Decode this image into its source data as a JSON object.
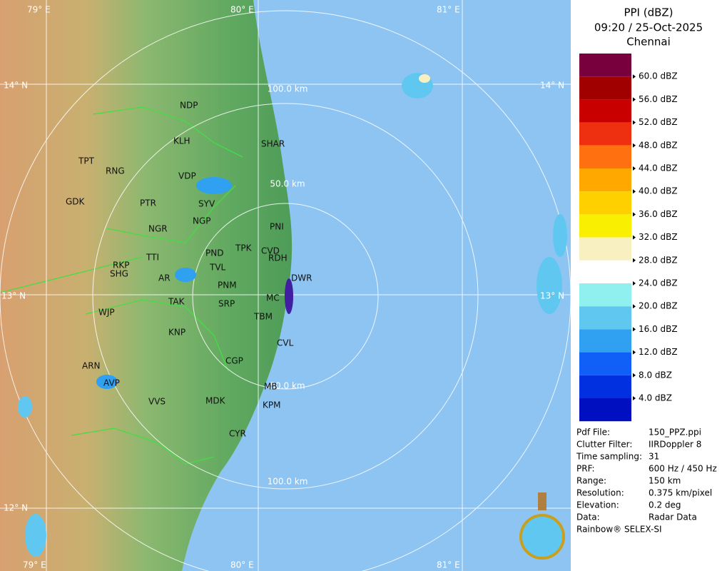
{
  "map": {
    "grid_labels": [
      "79° E",
      "80° E",
      "81° E",
      "14° N",
      "14° N",
      "13° N",
      "13° N",
      "12° N",
      "79° E",
      "80° E",
      "81° E"
    ],
    "range_labels": [
      "100.0 km",
      "50.0 km",
      "50.0 km",
      "100.0 km"
    ],
    "towns": [
      "NDP",
      "KLH",
      "TPT",
      "RNG",
      "SHAR",
      "VDP",
      "GDK",
      "PTR",
      "SYV",
      "NGP",
      "NGR",
      "PNI",
      "PND",
      "TPK",
      "CVD",
      "RDH",
      "TTI",
      "RKP",
      "SHG",
      "TVL",
      "AR",
      "DWR",
      "PNM",
      "MC",
      "TAK",
      "SRP",
      "WJP",
      "TBM",
      "KNP",
      "CVL",
      "CGP",
      "ARN",
      "AVP",
      "MB",
      "VVS",
      "MDK",
      "KPM",
      "CYR"
    ]
  },
  "legend": {
    "title": [
      "PPI (dBZ)",
      "09:20 / 25-Oct-2025",
      "Chennai"
    ],
    "levels": [
      {
        "label": "60.0 dBZ",
        "color": "#a00000"
      },
      {
        "label": "56.0 dBZ",
        "color": "#c80000"
      },
      {
        "label": "52.0 dBZ",
        "color": "#ee3010"
      },
      {
        "label": "48.0 dBZ",
        "color": "#ff7010"
      },
      {
        "label": "44.0 dBZ",
        "color": "#ffa800"
      },
      {
        "label": "40.0 dBZ",
        "color": "#ffd000"
      },
      {
        "label": "36.0 dBZ",
        "color": "#f8f000"
      },
      {
        "label": "32.0 dBZ",
        "color": "#f8f0c0"
      },
      {
        "label": "28.0 dBZ",
        "color": "#ffffff"
      },
      {
        "label": "24.0 dBZ",
        "color": "#90f0f0"
      },
      {
        "label": "20.0 dBZ",
        "color": "#60c8f0"
      },
      {
        "label": "16.0 dBZ",
        "color": "#30a0f0"
      },
      {
        "label": "12.0 dBZ",
        "color": "#1060f8"
      },
      {
        "label": "8.0 dBZ",
        "color": "#0030e0"
      },
      {
        "label": "4.0 dBZ",
        "color": "#0010c0"
      }
    ],
    "top_color": "#78003c",
    "bottom_color": "#00009c"
  },
  "info": {
    "rows": [
      [
        "Pdf File:",
        "150_PPZ.ppi"
      ],
      [
        "Clutter Filter:",
        "IIRDoppler 8"
      ],
      [
        "Time sampling:",
        "31"
      ],
      [
        "PRF:",
        "600 Hz / 450 Hz"
      ],
      [
        "Range:",
        "150 km"
      ],
      [
        "Resolution:",
        "0.375 km/pixel"
      ],
      [
        "Elevation:",
        "0.2 deg"
      ],
      [
        "Data:",
        "Radar Data"
      ]
    ],
    "footer": "Rainbow® SELEX-SI"
  }
}
